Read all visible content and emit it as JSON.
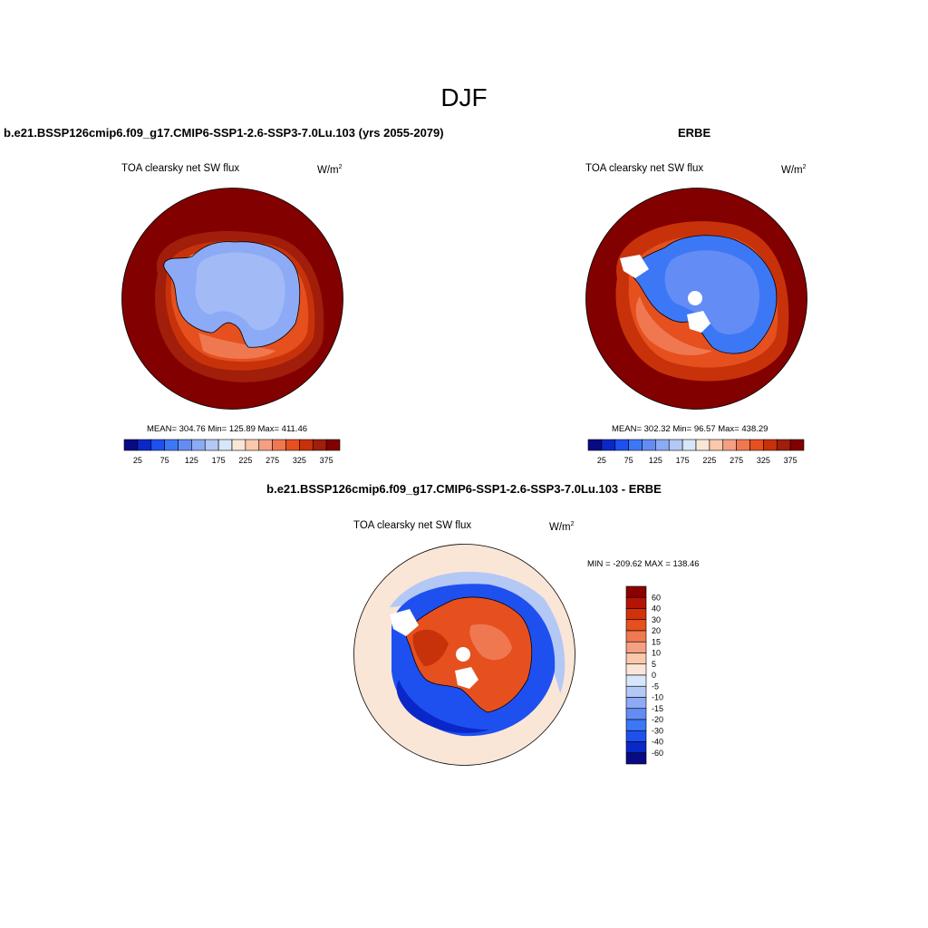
{
  "page": {
    "title": "DJF"
  },
  "panels": [
    {
      "id": "model",
      "header": "b.e21.BSSP126cmip6.f09_g17.CMIP6-SSP1-2.6-SSP3-7.0Lu.103 (yrs 2055-2079)",
      "variable": "TOA clearsky net SW flux",
      "units": "W/m",
      "units_exp": "2",
      "stats": "MEAN= 304.76  Min= 125.89  Max= 411.46"
    },
    {
      "id": "obs",
      "header": "ERBE",
      "variable": "TOA clearsky net SW flux",
      "units": "W/m",
      "units_exp": "2",
      "stats": "MEAN= 302.32  Min=  96.57  Max= 438.29"
    },
    {
      "id": "diff",
      "header": "b.e21.BSSP126cmip6.f09_g17.CMIP6-SSP1-2.6-SSP3-7.0Lu.103 - ERBE",
      "variable": "TOA clearsky net SW flux",
      "units": "W/m",
      "units_exp": "2",
      "stats": "MIN = -209.62 MAX = 138.46"
    }
  ],
  "chart_data": [
    {
      "type": "heatmap",
      "title": "TOA clearsky net SW flux",
      "subtitle": "b.e21.BSSP126cmip6.f09_g17.CMIP6-SSP1-2.6-SSP3-7.0Lu.103 (yrs 2055-2079)",
      "units": "W/m2",
      "projection": "south polar stereographic",
      "mean": 304.76,
      "min": 125.89,
      "max": 411.46,
      "colorbar": {
        "orientation": "horizontal",
        "levels": [
          25,
          50,
          75,
          100,
          125,
          150,
          175,
          200,
          225,
          250,
          275,
          300,
          325,
          350,
          375
        ],
        "tick_labels": [
          "25",
          "75",
          "125",
          "175",
          "225",
          "275",
          "325",
          "375"
        ],
        "colors": [
          "#0a0a82",
          "#0a28c8",
          "#1e50f0",
          "#3c78f5",
          "#648cf5",
          "#8caaf5",
          "#b4c8f5",
          "#d7e6fa",
          "#fae6d7",
          "#fac8aa",
          "#f5a082",
          "#f07850",
          "#e6501e",
          "#c8320a",
          "#a01e0a",
          "#820000"
        ]
      }
    },
    {
      "type": "heatmap",
      "title": "TOA clearsky net SW flux",
      "subtitle": "ERBE",
      "units": "W/m2",
      "projection": "south polar stereographic",
      "mean": 302.32,
      "min": 96.57,
      "max": 438.29,
      "colorbar": {
        "orientation": "horizontal",
        "levels": [
          25,
          50,
          75,
          100,
          125,
          150,
          175,
          200,
          225,
          250,
          275,
          300,
          325,
          350,
          375
        ],
        "tick_labels": [
          "25",
          "75",
          "125",
          "175",
          "225",
          "275",
          "325",
          "375"
        ],
        "colors": [
          "#0a0a82",
          "#0a28c8",
          "#1e50f0",
          "#3c78f5",
          "#648cf5",
          "#8caaf5",
          "#b4c8f5",
          "#d7e6fa",
          "#fae6d7",
          "#fac8aa",
          "#f5a082",
          "#f07850",
          "#e6501e",
          "#c8320a",
          "#a01e0a",
          "#820000"
        ]
      }
    },
    {
      "type": "heatmap",
      "title": "TOA clearsky net SW flux",
      "subtitle": "b.e21.BSSP126cmip6.f09_g17.CMIP6-SSP1-2.6-SSP3-7.0Lu.103 - ERBE",
      "units": "W/m2",
      "projection": "south polar stereographic",
      "min": -209.62,
      "max": 138.46,
      "colorbar": {
        "orientation": "vertical",
        "levels": [
          60,
          40,
          30,
          20,
          15,
          10,
          5,
          0,
          -5,
          -10,
          -15,
          -20,
          -30,
          -40,
          -60
        ],
        "tick_labels": [
          "60",
          "40",
          "30",
          "20",
          "15",
          "10",
          "5",
          "0",
          "-5",
          "-10",
          "-15",
          "-20",
          "-30",
          "-40",
          "-60"
        ],
        "colors": [
          "#8c0000",
          "#b41405",
          "#d2320a",
          "#e6501e",
          "#f07850",
          "#f5a082",
          "#fac8aa",
          "#fae6d7",
          "#d7e6fa",
          "#b4c8f5",
          "#8caaf5",
          "#648cf5",
          "#3c78f5",
          "#1e50f0",
          "#0a28c8",
          "#0a0a82"
        ]
      }
    }
  ]
}
